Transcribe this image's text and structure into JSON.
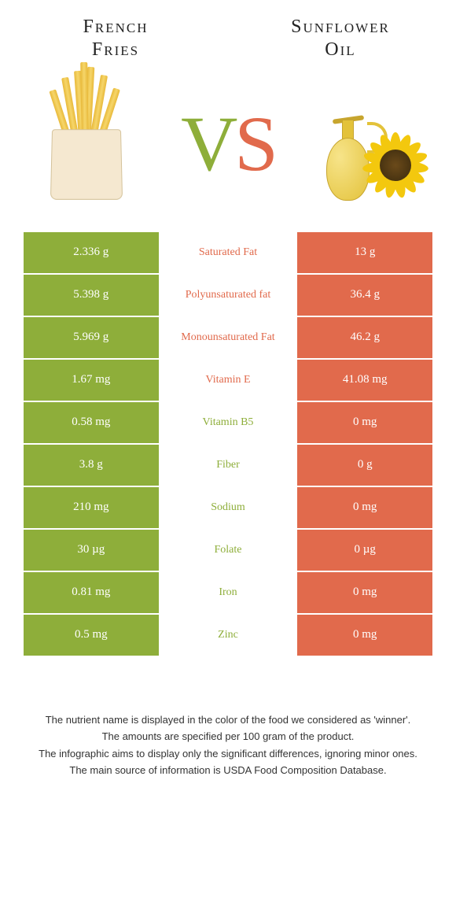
{
  "left_food": {
    "title_line1": "French",
    "title_line2": "Fries"
  },
  "right_food": {
    "title_line1": "Sunflower",
    "title_line2": "Oil"
  },
  "vs": {
    "v": "V",
    "s": "S"
  },
  "colors": {
    "left_bar": "#8eae3a",
    "right_bar": "#e16a4c",
    "left_text": "#8eae3a",
    "right_text": "#e16a4c"
  },
  "rows": [
    {
      "left": "2.336 g",
      "label": "Saturated Fat",
      "right": "13 g",
      "winner": "right"
    },
    {
      "left": "5.398 g",
      "label": "Polyunsaturated fat",
      "right": "36.4 g",
      "winner": "right"
    },
    {
      "left": "5.969 g",
      "label": "Monounsaturated Fat",
      "right": "46.2 g",
      "winner": "right"
    },
    {
      "left": "1.67 mg",
      "label": "Vitamin E",
      "right": "41.08 mg",
      "winner": "right"
    },
    {
      "left": "0.58 mg",
      "label": "Vitamin B5",
      "right": "0 mg",
      "winner": "left"
    },
    {
      "left": "3.8 g",
      "label": "Fiber",
      "right": "0 g",
      "winner": "left"
    },
    {
      "left": "210 mg",
      "label": "Sodium",
      "right": "0 mg",
      "winner": "left"
    },
    {
      "left": "30 µg",
      "label": "Folate",
      "right": "0 µg",
      "winner": "left"
    },
    {
      "left": "0.81 mg",
      "label": "Iron",
      "right": "0 mg",
      "winner": "left"
    },
    {
      "left": "0.5 mg",
      "label": "Zinc",
      "right": "0 mg",
      "winner": "left"
    }
  ],
  "footnotes": [
    "The nutrient name is displayed in the color of the food we considered as 'winner'.",
    "The amounts are specified per 100 gram of the product.",
    "The infographic aims to display only the significant differences, ignoring minor ones.",
    "The main source of information is USDA Food Composition Database."
  ]
}
